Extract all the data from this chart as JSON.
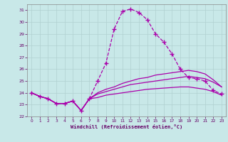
{
  "xlabel": "Windchill (Refroidissement éolien,°C)",
  "background_color": "#c8e8e8",
  "grid_color": "#b0d0d0",
  "line_color": "#aa00aa",
  "xlim": [
    -0.5,
    23.5
  ],
  "ylim": [
    22,
    31.5
  ],
  "yticks": [
    22,
    23,
    24,
    25,
    26,
    27,
    28,
    29,
    30,
    31
  ],
  "xticks": [
    0,
    1,
    2,
    3,
    4,
    5,
    6,
    7,
    8,
    9,
    10,
    11,
    12,
    13,
    14,
    15,
    16,
    17,
    18,
    19,
    20,
    21,
    22,
    23
  ],
  "hours": [
    0,
    1,
    2,
    3,
    4,
    5,
    6,
    7,
    8,
    9,
    10,
    11,
    12,
    13,
    14,
    15,
    16,
    17,
    18,
    19,
    20,
    21,
    22,
    23
  ],
  "temp": [
    24.0,
    23.7,
    23.5,
    23.1,
    23.1,
    23.3,
    22.5,
    23.5,
    25.0,
    26.5,
    29.4,
    30.9,
    31.1,
    30.8,
    30.2,
    29.0,
    28.3,
    27.3,
    26.0,
    25.3,
    25.2,
    25.0,
    24.2,
    23.9
  ],
  "line2": [
    24.0,
    23.7,
    23.5,
    23.1,
    23.1,
    23.3,
    22.5,
    23.5,
    23.6,
    23.8,
    23.9,
    24.0,
    24.1,
    24.2,
    24.3,
    24.35,
    24.4,
    24.45,
    24.5,
    24.5,
    24.4,
    24.3,
    24.1,
    23.8
  ],
  "line3": [
    24.0,
    23.7,
    23.5,
    23.1,
    23.1,
    23.3,
    22.5,
    23.5,
    23.9,
    24.1,
    24.3,
    24.5,
    24.7,
    24.8,
    24.9,
    25.0,
    25.1,
    25.2,
    25.3,
    25.4,
    25.3,
    25.2,
    24.9,
    24.5
  ],
  "line4": [
    24.0,
    23.7,
    23.5,
    23.1,
    23.1,
    23.3,
    22.5,
    23.5,
    24.0,
    24.3,
    24.5,
    24.8,
    25.0,
    25.2,
    25.3,
    25.5,
    25.6,
    25.7,
    25.8,
    25.9,
    25.8,
    25.6,
    25.1,
    24.5
  ]
}
